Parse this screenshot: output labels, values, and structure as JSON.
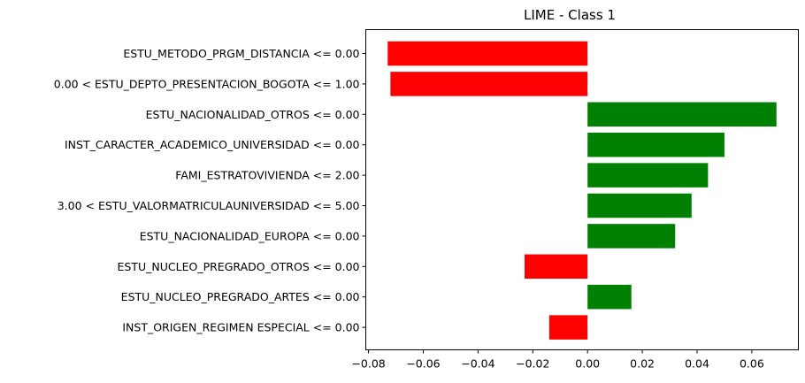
{
  "chart_data": {
    "type": "bar",
    "orientation": "horizontal",
    "title": "LIME - Class 1",
    "xlabel": "",
    "ylabel": "",
    "xlim": [
      -0.081,
      0.077
    ],
    "x_ticks": [
      -0.08,
      -0.06,
      -0.04,
      -0.02,
      0.0,
      0.02,
      0.04,
      0.06
    ],
    "x_tick_labels": [
      "−0.08",
      "−0.06",
      "−0.04",
      "−0.02",
      "0.00",
      "0.02",
      "0.04",
      "0.06"
    ],
    "grid": false,
    "positive_color": "#008000",
    "negative_color": "#ff0000",
    "categories": [
      "ESTU_METODO_PRGM_DISTANCIA <= 0.00",
      "0.00 < ESTU_DEPTO_PRESENTACION_BOGOTA <= 1.00",
      "ESTU_NACIONALIDAD_OTROS <= 0.00",
      "INST_CARACTER_ACADEMICO_UNIVERSIDAD <= 0.00",
      "FAMI_ESTRATOVIVIENDA <= 2.00",
      "3.00 < ESTU_VALORMATRICULAUNIVERSIDAD <= 5.00",
      "ESTU_NACIONALIDAD_EUROPA <= 0.00",
      "ESTU_NUCLEO_PREGRADO_OTROS <= 0.00",
      "ESTU_NUCLEO_PREGRADO_ARTES <= 0.00",
      "INST_ORIGEN_REGIMEN ESPECIAL <= 0.00"
    ],
    "values": [
      -0.073,
      -0.072,
      0.069,
      0.05,
      0.044,
      0.038,
      0.032,
      -0.023,
      0.016,
      -0.014
    ]
  }
}
